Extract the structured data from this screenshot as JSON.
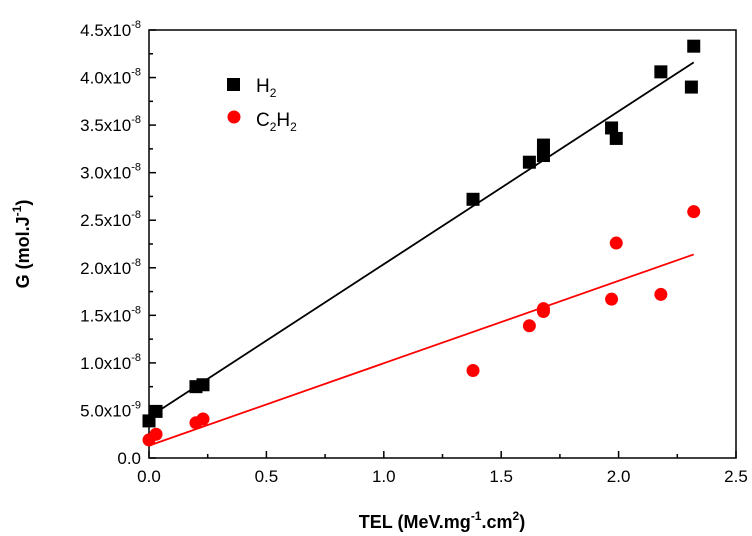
{
  "chart_data": {
    "type": "scatter",
    "xlabel": {
      "base": "TEL (MeV.mg",
      "sup1": "-1",
      "mid": ".cm",
      "sup2": "2",
      "end": ")"
    },
    "ylabel": {
      "base": "G (mol.J",
      "sup": "-1",
      "end": ")"
    },
    "xlim": [
      0.0,
      2.5
    ],
    "ylim": [
      0.0,
      4.5e-08
    ],
    "x_ticks": [
      {
        "value": 0.0,
        "label": "0.0"
      },
      {
        "value": 0.5,
        "label": "0.5"
      },
      {
        "value": 1.0,
        "label": "1.0"
      },
      {
        "value": 1.5,
        "label": "1.5"
      },
      {
        "value": 2.0,
        "label": "2.0"
      },
      {
        "value": 2.5,
        "label": "2.5"
      }
    ],
    "y_ticks": [
      {
        "value": 0.0,
        "mant": "0.0",
        "exp": ""
      },
      {
        "value": 5e-09,
        "mant": "5.0x10",
        "exp": "-9"
      },
      {
        "value": 1e-08,
        "mant": "1.0x10",
        "exp": "-8"
      },
      {
        "value": 1.5e-08,
        "mant": "1.5x10",
        "exp": "-8"
      },
      {
        "value": 2e-08,
        "mant": "2.0x10",
        "exp": "-8"
      },
      {
        "value": 2.5e-08,
        "mant": "2.5x10",
        "exp": "-8"
      },
      {
        "value": 3e-08,
        "mant": "3.0x10",
        "exp": "-8"
      },
      {
        "value": 3.5e-08,
        "mant": "3.5x10",
        "exp": "-8"
      },
      {
        "value": 4e-08,
        "mant": "4.0x10",
        "exp": "-8"
      },
      {
        "value": 4.5e-08,
        "mant": "4.5x10",
        "exp": "-8"
      }
    ],
    "grid": false,
    "legend_position": "top-left",
    "series": [
      {
        "id": "h2",
        "legend": {
          "part1": "H",
          "sub1": "2",
          "part2": "",
          "sub2": ""
        },
        "marker": "square",
        "color": "#000000",
        "x": [
          0.0,
          0.03,
          0.2,
          0.23,
          1.38,
          1.62,
          1.68,
          1.68,
          1.97,
          1.99,
          2.18,
          2.31,
          2.32
        ],
        "y": [
          3.9e-09,
          4.9e-09,
          7.5e-09,
          7.7e-09,
          2.72e-08,
          3.11e-08,
          3.18e-08,
          3.29e-08,
          3.47e-08,
          3.36e-08,
          4.06e-08,
          3.9e-08,
          4.33e-08
        ],
        "fit": {
          "x": [
            0.0,
            2.32
          ],
          "y": [
            4.3e-09,
            4.16e-08
          ]
        }
      },
      {
        "id": "c2h2",
        "legend": {
          "part1": "C",
          "sub1": "2",
          "part2": "H",
          "sub2": "2"
        },
        "marker": "circle",
        "color": "#ff0000",
        "x": [
          0.0,
          0.03,
          0.2,
          0.23,
          1.38,
          1.62,
          1.68,
          1.68,
          1.97,
          1.99,
          2.18,
          2.32
        ],
        "y": [
          1.9e-09,
          2.5e-09,
          3.7e-09,
          4.1e-09,
          9.2e-09,
          1.39e-08,
          1.54e-08,
          1.57e-08,
          1.67e-08,
          2.26e-08,
          1.72e-08,
          2.59e-08
        ],
        "fit": {
          "x": [
            0.0,
            2.32
          ],
          "y": [
            1.3e-09,
            2.14e-08
          ]
        }
      }
    ]
  }
}
